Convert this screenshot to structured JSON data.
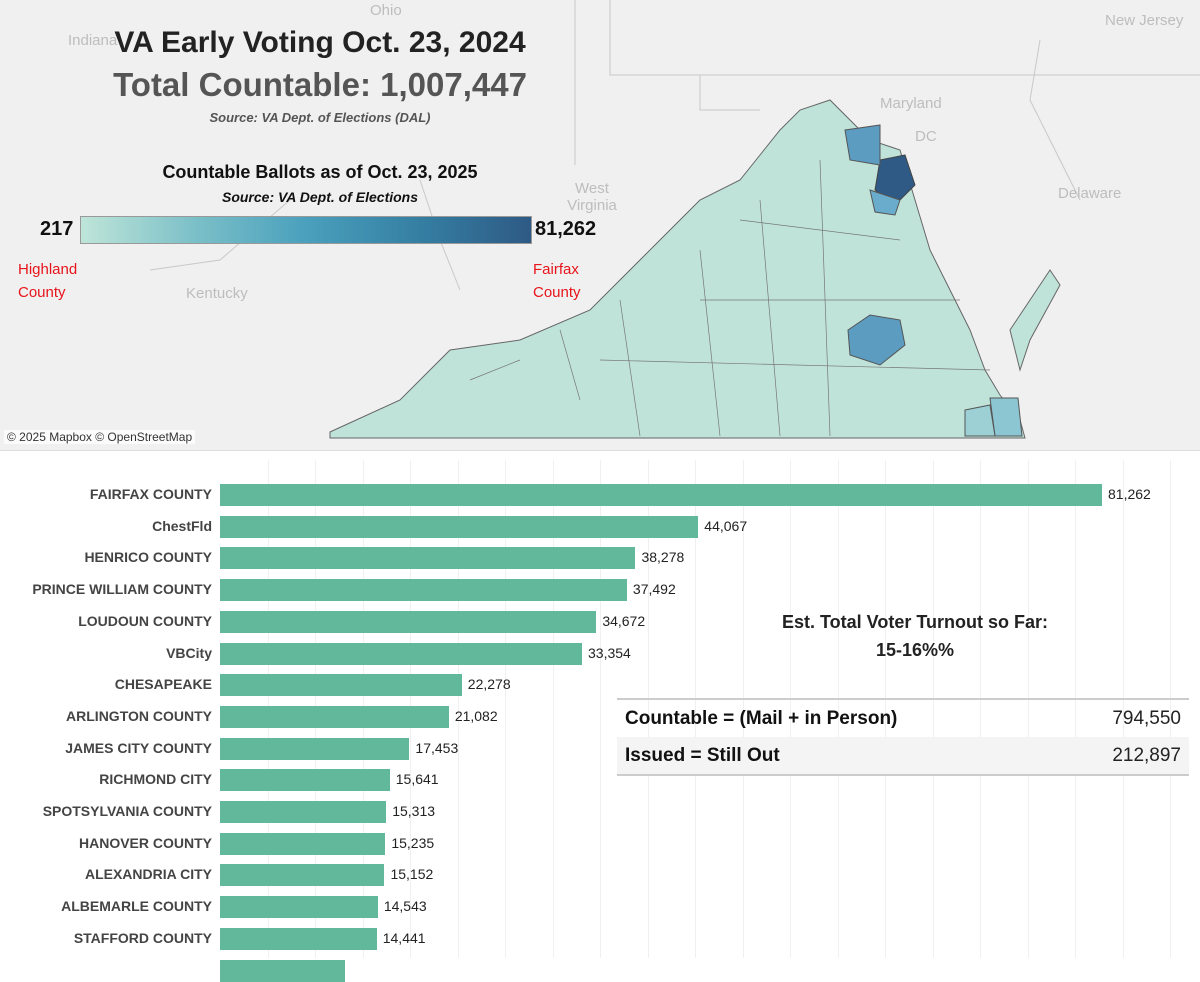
{
  "map": {
    "title": "VA Early Voting Oct. 23, 2024",
    "total": "Total Countable: 1,007,447",
    "source": "Source: VA Dept. of Elections (DAL)",
    "legend_title": "Countable Ballots as of Oct. 23, 2025",
    "legend_source": "Source: VA Dept. of Elections",
    "legend_min": "217",
    "legend_max": "81,262",
    "min_label": "Highland County",
    "max_label": "Fairfax County",
    "state_labels": [
      "Ohio",
      "Indiana",
      "West Virginia",
      "Kentucky",
      "Maryland",
      "DC",
      "Delaware",
      "New Jersey"
    ],
    "credit": "© 2025 Mapbox © OpenStreetMap",
    "colors": {
      "low": "#bfe5d8",
      "high": "#2e5a85"
    }
  },
  "turnout": {
    "label": "Est. Total Voter Turnout so Far:",
    "value": "15-16%%"
  },
  "table": [
    {
      "label": "Countable = (Mail + in Person)",
      "value": "794,550"
    },
    {
      "label": "Issued = Still Out",
      "value": "212,897"
    }
  ],
  "chart_data": {
    "type": "bar",
    "orientation": "horizontal",
    "color": "#62b89a",
    "categories": [
      "FAIRFAX COUNTY",
      "ChestFld",
      "HENRICO COUNTY",
      "PRINCE WILLIAM COUNTY",
      "LOUDOUN COUNTY",
      "VBCity",
      "CHESAPEAKE",
      "ARLINGTON COUNTY",
      "JAMES CITY COUNTY",
      "RICHMOND CITY",
      "SPOTSYLVANIA COUNTY",
      "HANOVER COUNTY",
      "ALEXANDRIA CITY",
      "ALBEMARLE COUNTY",
      "STAFFORD COUNTY"
    ],
    "values": [
      81262,
      44067,
      38278,
      37492,
      34672,
      33354,
      22278,
      21082,
      17453,
      15641,
      15313,
      15235,
      15152,
      14543,
      14441
    ],
    "labels": [
      "81,262",
      "44,067",
      "38,278",
      "37,492",
      "34,672",
      "33,354",
      "22,278",
      "21,082",
      "17,453",
      "15,641",
      "15,313",
      "15,235",
      "15,152",
      "14,543",
      "14,441"
    ]
  }
}
